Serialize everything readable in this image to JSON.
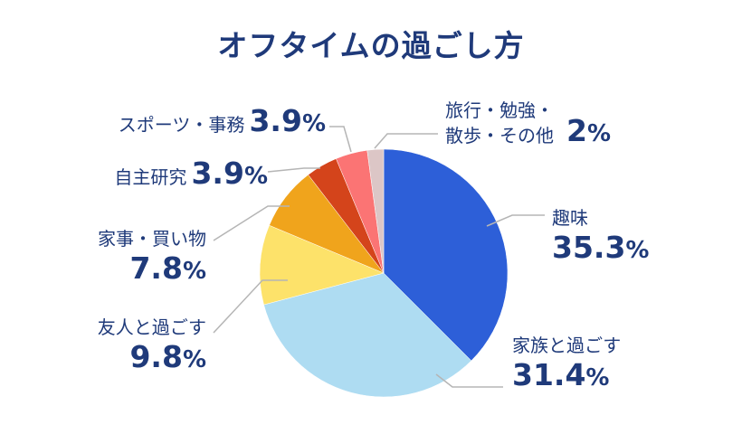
{
  "chart_data": {
    "type": "pie",
    "title": "オフタイムの過ごし方",
    "unit": "%",
    "slices": [
      {
        "label": "趣味",
        "value": 35.3,
        "color": "#2d5fd8"
      },
      {
        "label": "家族と過ごす",
        "value": 31.4,
        "color": "#aedcf2"
      },
      {
        "label": "友人と過ごす",
        "value": 9.8,
        "color": "#fde26a"
      },
      {
        "label": "家事・買い物",
        "value": 7.8,
        "color": "#f0a41c"
      },
      {
        "label": "自主研究",
        "value": 3.9,
        "color": "#d4441b"
      },
      {
        "label": "スポーツ・事務",
        "value": 3.9,
        "color": "#fb7474"
      },
      {
        "label": "旅行・勉強・散歩・その他",
        "value": 2,
        "display": "2",
        "color": "#dcc6c6"
      }
    ]
  }
}
